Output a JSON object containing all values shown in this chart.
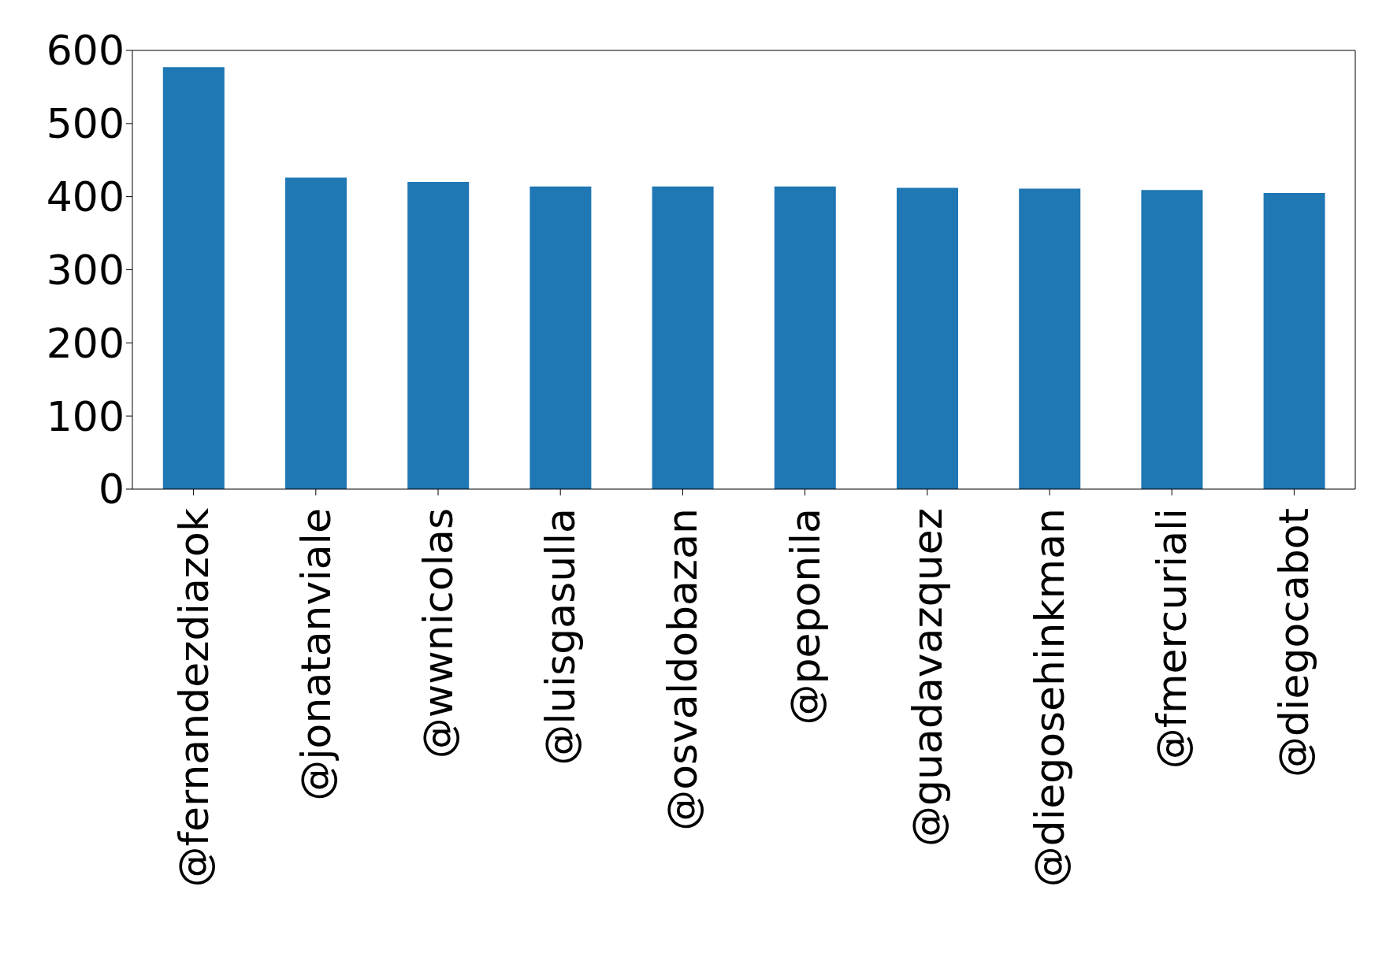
{
  "chart_data": {
    "type": "bar",
    "categories": [
      "@fernandezdiazok",
      "@jonatanviale",
      "@wwnicolas",
      "@luisgasulla",
      "@osvaldobazan",
      "@peponila",
      "@guadavazquez",
      "@diegosehinkman",
      "@fmercuriali",
      "@diegocabot"
    ],
    "values": [
      577,
      426,
      420,
      414,
      414,
      414,
      412,
      411,
      409,
      405
    ],
    "color": "#1f77b4",
    "ylim": [
      0,
      600
    ],
    "yticks": [
      0,
      100,
      200,
      300,
      400,
      500,
      600
    ],
    "grid": false
  }
}
